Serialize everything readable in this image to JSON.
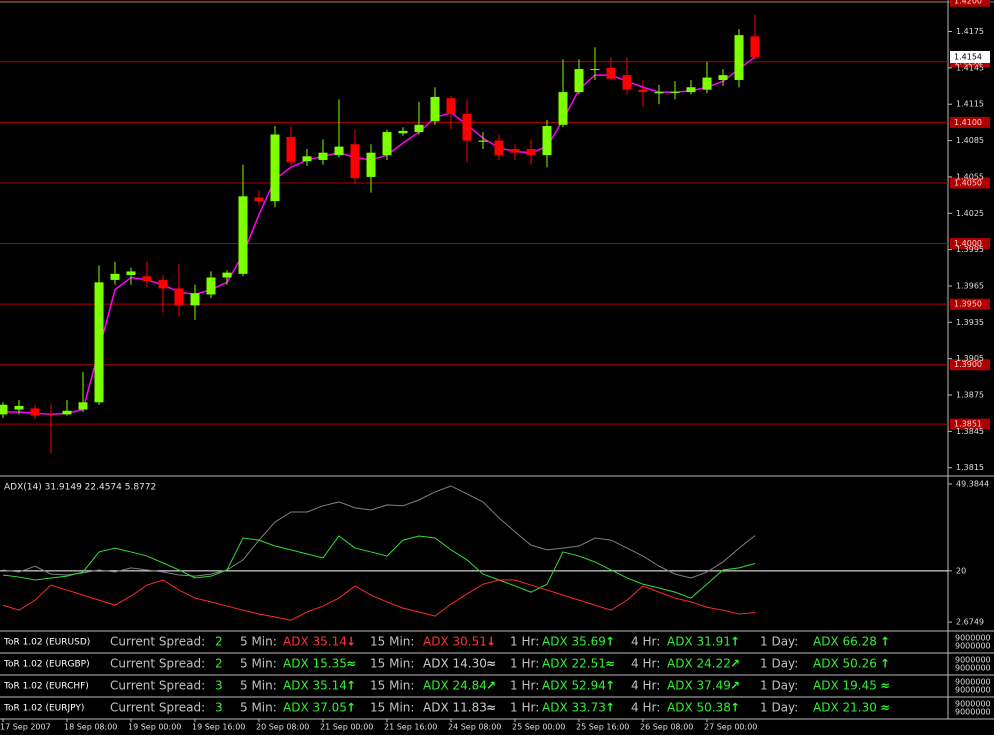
{
  "chart_data": [
    {
      "type": "candlestick",
      "categories": [
        "17 Sep 2007",
        null,
        null,
        null,
        "18 Sep 08:00",
        null,
        null,
        null,
        "19 Sep 00:00",
        null,
        null,
        null,
        "19 Sep 16:00",
        null,
        null,
        null,
        "20 Sep 08:00",
        null,
        null,
        null,
        "21 Sep 00:00",
        null,
        null,
        null,
        "21 Sep 16:00",
        null,
        null,
        null,
        "24 Sep 08:00",
        null,
        null,
        null,
        "25 Sep 00:00",
        null,
        null,
        null,
        "25 Sep 16:00",
        null,
        null,
        null,
        "26 Sep 08:00",
        null,
        null,
        null,
        "27 Sep 00:00",
        null,
        null,
        null
      ],
      "open": [
        1.3859,
        1.3863,
        1.3864,
        1.386,
        1.3859,
        1.3863,
        1.3869,
        1.397,
        1.3974,
        1.3973,
        1.397,
        1.3963,
        1.3949,
        1.3958,
        1.3972,
        1.3975,
        1.4038,
        1.4035,
        1.4088,
        1.4068,
        1.4069,
        1.4073,
        1.4082,
        1.4055,
        1.4073,
        1.4091,
        1.4092,
        1.4101,
        1.412,
        1.4107,
        1.4084,
        1.4085,
        1.4078,
        1.4078,
        1.4073,
        1.4098,
        1.4125,
        1.4144,
        1.4145,
        1.4139,
        1.4127,
        1.4124,
        1.4125,
        1.4125,
        1.4127,
        1.4135,
        1.4135,
        1.4171
      ],
      "high": [
        1.3869,
        1.3871,
        1.3867,
        1.3867,
        1.3871,
        1.3894,
        1.3982,
        1.3985,
        1.398,
        1.3985,
        1.3974,
        1.3983,
        1.3966,
        1.3977,
        1.3978,
        1.4065,
        1.4044,
        1.4097,
        1.4097,
        1.4078,
        1.4086,
        1.4119,
        1.4094,
        1.4082,
        1.4094,
        1.4096,
        1.4117,
        1.4129,
        1.4122,
        1.4119,
        1.4092,
        1.409,
        1.4082,
        1.4086,
        1.4102,
        1.4152,
        1.4152,
        1.4162,
        1.4154,
        1.4154,
        1.4135,
        1.4131,
        1.4134,
        1.4135,
        1.415,
        1.4144,
        1.4177,
        1.4189
      ],
      "low": [
        1.3856,
        1.3859,
        1.3855,
        1.3827,
        1.3858,
        1.3861,
        1.3867,
        1.3966,
        1.3966,
        1.3964,
        1.3943,
        1.394,
        1.3937,
        1.3955,
        1.3966,
        1.3973,
        1.4032,
        1.403,
        1.4063,
        1.4064,
        1.4065,
        1.4071,
        1.4049,
        1.4042,
        1.4069,
        1.4089,
        1.409,
        1.4098,
        1.4094,
        1.4067,
        1.4078,
        1.4069,
        1.4069,
        1.4065,
        1.4063,
        1.4096,
        1.4123,
        1.4135,
        1.4135,
        1.4123,
        1.4113,
        1.4115,
        1.4119,
        1.4123,
        1.4124,
        1.413,
        1.4129,
        1.4152
      ],
      "close": [
        1.3867,
        1.3866,
        1.3858,
        1.3859,
        1.3862,
        1.3869,
        1.3968,
        1.3975,
        1.3977,
        1.3969,
        1.3963,
        1.3949,
        1.3959,
        1.3972,
        1.3976,
        1.4039,
        1.4035,
        1.409,
        1.4067,
        1.4072,
        1.4075,
        1.408,
        1.4054,
        1.4075,
        1.4092,
        1.4093,
        1.4098,
        1.4121,
        1.4107,
        1.4085,
        1.4085,
        1.4073,
        1.4075,
        1.4073,
        1.4097,
        1.4125,
        1.4144,
        1.4144,
        1.4136,
        1.4127,
        1.4125,
        1.4125,
        1.4125,
        1.4129,
        1.4137,
        1.4139,
        1.4172,
        1.4154
      ],
      "up_color": "#7cff00",
      "down_color": "#ff0000",
      "series": [
        {
          "color": "#ff00ff",
          "values": [
            1.3861,
            1.3861,
            1.386,
            1.3859,
            1.386,
            1.3863,
            1.3912,
            1.3962,
            1.3972,
            1.397,
            1.3966,
            1.396,
            1.3958,
            1.3962,
            1.3968,
            1.3991,
            1.4024,
            1.4053,
            1.4063,
            1.4069,
            1.4072,
            1.4075,
            1.4071,
            1.4069,
            1.4073,
            1.4083,
            1.4092,
            1.4104,
            1.4108,
            1.4098,
            1.4087,
            1.4079,
            1.4076,
            1.4075,
            1.408,
            1.4102,
            1.4127,
            1.4139,
            1.4139,
            1.4134,
            1.4129,
            1.4125,
            1.4125,
            1.4126,
            1.4129,
            1.4134,
            1.4144,
            1.4154
          ]
        }
      ],
      "ylim": [
        1.3809,
        1.4201
      ],
      "yticks": [
        1.4175,
        1.4145,
        1.4115,
        1.4085,
        1.4055,
        1.4025,
        1.3995,
        1.3965,
        1.3935,
        1.3905,
        1.3875,
        1.3845,
        1.3815
      ],
      "levels": [
        {
          "value": 1.42,
          "label": "1.4200"
        },
        {
          "value": 1.415,
          "label": "1.4150"
        },
        {
          "value": 1.41,
          "label": "1.4100"
        },
        {
          "value": 1.405,
          "label": "1.4050"
        },
        {
          "value": 1.4,
          "label": "1.4000"
        },
        {
          "value": 1.395,
          "label": "1.3950"
        },
        {
          "value": 1.39,
          "label": "1.3900"
        },
        {
          "value": 1.3851,
          "label": "1.3851"
        }
      ],
      "level_color": "#b00000",
      "bid": 1.4154
    },
    {
      "type": "line",
      "title": "ADX(14) 31.9149 22.4574 5.8772",
      "series": [
        {
          "color": "#808080",
          "values": [
            20.3,
            19.6,
            21.6,
            18.9,
            18.6,
            19.3,
            20.3,
            19.6,
            21.0,
            20.3,
            19.6,
            18.6,
            18.2,
            18.9,
            20.3,
            23.7,
            30.4,
            36.5,
            39.9,
            39.9,
            42.0,
            43.3,
            41.3,
            40.6,
            42.3,
            42.0,
            44.0,
            46.7,
            48.7,
            46.0,
            43.3,
            37.9,
            33.2,
            28.7,
            27.1,
            27.7,
            28.4,
            31.1,
            30.4,
            27.7,
            25.0,
            21.6,
            18.9,
            17.6,
            19.6,
            23.0,
            27.7,
            31.9
          ]
        },
        {
          "color": "#33dd33",
          "values": [
            18.6,
            17.9,
            16.9,
            17.6,
            18.2,
            19.6,
            26.4,
            27.7,
            26.4,
            25.0,
            22.7,
            20.3,
            17.6,
            18.2,
            20.3,
            31.1,
            30.4,
            28.4,
            27.1,
            25.7,
            24.4,
            31.8,
            27.7,
            26.4,
            25.0,
            30.4,
            31.8,
            31.1,
            27.1,
            23.7,
            18.9,
            16.9,
            14.9,
            12.8,
            15.5,
            26.4,
            25.0,
            23.0,
            20.3,
            17.6,
            15.5,
            14.2,
            12.8,
            10.8,
            15.5,
            20.3,
            21.0,
            22.5
          ]
        },
        {
          "color": "#ff2a2a",
          "values": [
            8.4,
            6.7,
            10.1,
            15.2,
            13.5,
            11.8,
            10.1,
            8.4,
            11.5,
            15.2,
            16.9,
            13.5,
            10.8,
            9.5,
            8.1,
            6.7,
            5.4,
            4.4,
            3.3,
            6.1,
            8.1,
            10.8,
            14.9,
            11.8,
            9.5,
            7.4,
            6.1,
            4.7,
            8.8,
            12.2,
            15.5,
            16.9,
            16.9,
            15.2,
            13.5,
            11.8,
            10.1,
            8.4,
            6.7,
            10.1,
            14.9,
            12.8,
            10.8,
            9.5,
            7.7,
            6.7,
            5.4,
            5.9
          ]
        }
      ],
      "ylim": [
        0,
        51.4
      ],
      "yticks": [
        2.6749,
        20,
        49.3844
      ],
      "levels": [
        20
      ]
    }
  ],
  "tor_panels": [
    {
      "title": "ToR 1.02 (EURUSD)",
      "spread_label": "Current Spread:",
      "spread": "2",
      "scale": [
        "9000000",
        "9000000"
      ],
      "items": [
        {
          "label": "5 Min:",
          "text": "ADX 35.14",
          "arrow": "↓",
          "color": "#ff3030"
        },
        {
          "label": "15 Min:",
          "text": "ADX 30.51",
          "arrow": "↓",
          "color": "#ff3030"
        },
        {
          "label": "1 Hr:",
          "text": "ADX 35.69",
          "arrow": "↑",
          "color": "#33ee33"
        },
        {
          "label": "4 Hr:",
          "text": "ADX 31.91",
          "arrow": "↑",
          "color": "#33ee33"
        },
        {
          "label": "1 Day:",
          "text": "ADX 66.28",
          "arrow": "↑",
          "color": "#33ee33"
        }
      ]
    },
    {
      "title": "ToR 1.02 (EURGBP)",
      "spread_label": "Current Spread:",
      "spread": "2",
      "scale": [
        "9000000",
        "9000000"
      ],
      "items": [
        {
          "label": "5 Min:",
          "text": "ADX 15.35",
          "arrow": "≈",
          "color": "#33ee33"
        },
        {
          "label": "15 Min:",
          "text": "ADX 14.30",
          "arrow": "≈",
          "color": "#c8c8c8"
        },
        {
          "label": "1 Hr:",
          "text": "ADX 22.51",
          "arrow": "≈",
          "color": "#33ee33"
        },
        {
          "label": "4 Hr:",
          "text": "ADX 24.22",
          "arrow": "↗",
          "color": "#33ee33"
        },
        {
          "label": "1 Day:",
          "text": "ADX 50.26",
          "arrow": "↑",
          "color": "#33ee33"
        }
      ]
    },
    {
      "title": "ToR 1.02 (EURCHF)",
      "spread_label": "Current Spread:",
      "spread": "3",
      "scale": [
        "9000000",
        "9000000"
      ],
      "items": [
        {
          "label": "5 Min:",
          "text": "ADX 35.14",
          "arrow": "↑",
          "color": "#33ee33"
        },
        {
          "label": "15 Min:",
          "text": "ADX 24.84",
          "arrow": "↗",
          "color": "#33ee33"
        },
        {
          "label": "1 Hr:",
          "text": "ADX 52.94",
          "arrow": "↑",
          "color": "#33ee33"
        },
        {
          "label": "4 Hr:",
          "text": "ADX 37.49",
          "arrow": "↗",
          "color": "#33ee33"
        },
        {
          "label": "1 Day:",
          "text": "ADX 19.45",
          "arrow": "≈",
          "color": "#33ee33"
        }
      ]
    },
    {
      "title": "ToR 1.02 (EURJPY)",
      "spread_label": "Current Spread:",
      "spread": "3",
      "scale": [
        "9000000",
        "9000000"
      ],
      "items": [
        {
          "label": "5 Min:",
          "text": "ADX 37.05",
          "arrow": "↑",
          "color": "#33ee33"
        },
        {
          "label": "15 Min:",
          "text": "ADX 11.83",
          "arrow": "≈",
          "color": "#c8c8c8"
        },
        {
          "label": "1 Hr:",
          "text": "ADX 33.73",
          "arrow": "↑",
          "color": "#33ee33"
        },
        {
          "label": "4 Hr:",
          "text": "ADX 50.38",
          "arrow": "↑",
          "color": "#33ee33"
        },
        {
          "label": "1 Day:",
          "text": "ADX 21.30",
          "arrow": "≈",
          "color": "#33ee33"
        }
      ]
    }
  ]
}
